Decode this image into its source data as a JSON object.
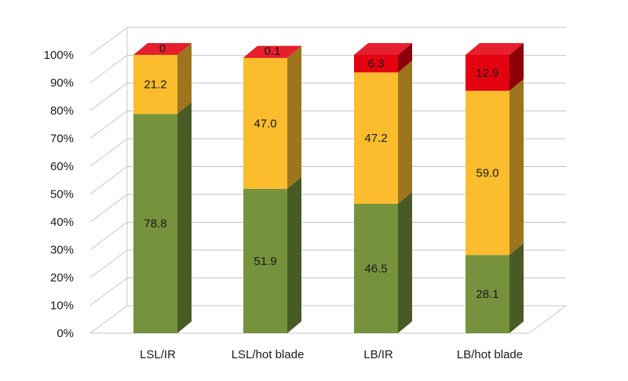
{
  "chart_data": {
    "type": "bar",
    "stacked": true,
    "percent_stacked": true,
    "three_d": true,
    "categories": [
      "LSL/IR",
      "LSL/hot blade",
      "LB/IR",
      "LB/hot blade"
    ],
    "series": [
      {
        "values": [
          78.8,
          51.9,
          46.5,
          28.1
        ],
        "labels": [
          "78.8",
          "51.9",
          "46.5",
          "28.1"
        ],
        "color": "#76923c"
      },
      {
        "values": [
          21.2,
          47.0,
          47.2,
          59.0
        ],
        "labels": [
          "21.2",
          "47.0",
          "47.2",
          "59.0"
        ],
        "color": "#fbbd2e"
      },
      {
        "values": [
          0,
          0.1,
          6.3,
          12.9
        ],
        "labels": [
          "0",
          "0.1",
          "6.3",
          "12.9"
        ],
        "color": "#e3000f"
      }
    ],
    "yticks": [
      "0%",
      "10%",
      "20%",
      "30%",
      "40%",
      "50%",
      "60%",
      "70%",
      "80%",
      "90%",
      "100%"
    ],
    "ylim": [
      0,
      100
    ],
    "grid": true,
    "legend": "none"
  }
}
